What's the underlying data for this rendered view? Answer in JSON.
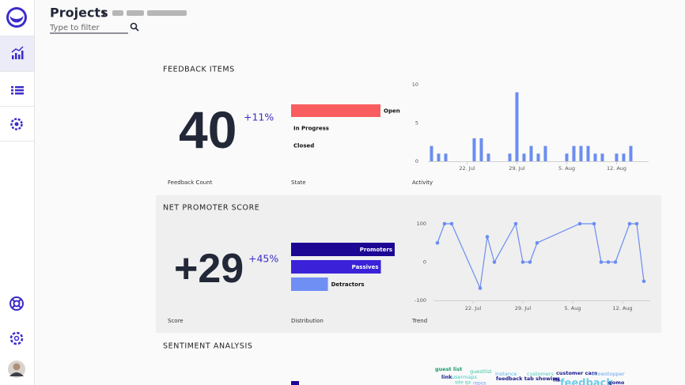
{
  "header": {
    "title": "Projects",
    "filter_placeholder": "Type to filter"
  },
  "feedback_items": {
    "title": "FEEDBACK ITEMS",
    "count": 40,
    "change": "+11%",
    "count_label": "Feedback Count"
  },
  "net_promoter_score": {
    "title": "NET PROMOTER SCORE",
    "score": "+29",
    "change": "+45%",
    "score_label": "Score"
  },
  "sentiment": {
    "title": "SENTIMENT ANALYSIS",
    "words": [
      {
        "text": "guest list",
        "color": "#1a9b6c"
      },
      {
        "text": "guestlist",
        "color": "#3cc3a0"
      },
      {
        "text": "instance",
        "color": "#5ab4e8"
      },
      {
        "text": "customers",
        "color": "#43c9c0"
      },
      {
        "text": "customer care",
        "color": "#1a1a8c"
      },
      {
        "text": "showstopper",
        "color": "#6aa0f0"
      },
      {
        "text": "link",
        "color": "#1a1a8c"
      },
      {
        "text": "usermaps",
        "color": "#43c9c0"
      },
      {
        "text": "feedback tab showing",
        "color": "#1a1a8c"
      },
      {
        "text": "tfs",
        "color": "#1a1a8c"
      },
      {
        "text": "feedback",
        "color": "#6ecbe8"
      },
      {
        "text": "gomo",
        "color": "#1a1a8c"
      },
      {
        "text": "site qa",
        "color": "#43c9c0"
      },
      {
        "text": "repos",
        "color": "#6aa0f0"
      }
    ]
  },
  "chart_data": [
    {
      "type": "hbar",
      "title": "State",
      "categories": [
        "Open",
        "In Progress",
        "Closed"
      ],
      "values": [
        40,
        0,
        0
      ],
      "color": "#f95d5f"
    },
    {
      "type": "bar",
      "title": "Activity",
      "categories": [
        null,
        null,
        null,
        null,
        null,
        "22. Jul",
        null,
        null,
        null,
        null,
        null,
        null,
        "29. Jul",
        null,
        null,
        null,
        null,
        null,
        null,
        "5. Aug",
        null,
        null,
        null,
        null,
        null,
        null,
        "12. Aug",
        null,
        null
      ],
      "values": [
        2,
        1,
        1,
        0,
        0,
        0,
        3,
        3,
        1,
        0,
        0,
        1,
        9,
        1,
        2,
        1,
        2,
        0,
        0,
        1,
        2,
        2,
        2,
        1,
        1,
        0,
        1,
        1,
        2
      ],
      "color": "#6b8df0",
      "ylim": [
        0,
        10
      ],
      "yticks": [
        0,
        5,
        10
      ]
    },
    {
      "type": "hbar",
      "title": "Distribution",
      "categories": [
        "Promoters",
        "Passives",
        "Detractors"
      ],
      "values": [
        45,
        39,
        16
      ],
      "colors": [
        "#1c0794",
        "#3b22d9",
        "#6f8ff5"
      ]
    },
    {
      "type": "line",
      "title": "Trend",
      "categories": [
        null,
        null,
        null,
        null,
        null,
        "22. Jul",
        null,
        null,
        null,
        null,
        null,
        null,
        "29. Jul",
        null,
        null,
        null,
        null,
        null,
        null,
        "5. Aug",
        null,
        null,
        null,
        null,
        null,
        null,
        "12. Aug",
        null,
        null,
        null
      ],
      "values": [
        50,
        100,
        100,
        null,
        null,
        null,
        -68,
        66,
        0,
        null,
        null,
        100,
        0,
        0,
        50,
        null,
        null,
        null,
        null,
        null,
        100,
        null,
        100,
        0,
        0,
        0,
        null,
        100,
        100,
        -50
      ],
      "color": "#6b8df0",
      "ylim": [
        -100,
        100
      ],
      "yticks": [
        -100,
        0,
        100
      ]
    }
  ]
}
